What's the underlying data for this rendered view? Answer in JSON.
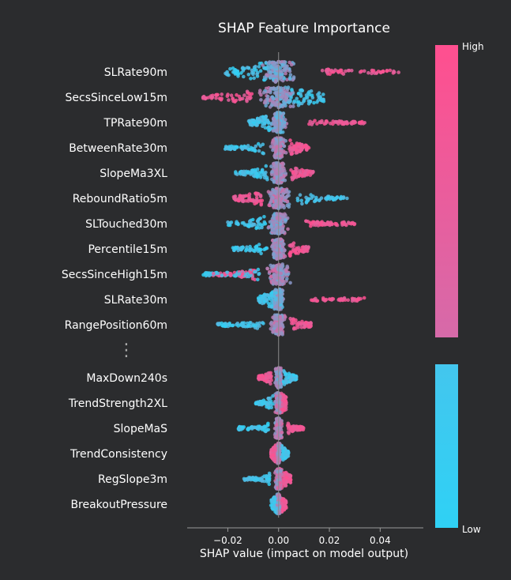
{
  "chart_data": {
    "type": "scatter",
    "subtype": "shap-beeswarm",
    "title": "SHAP Feature Importance",
    "xlabel": "SHAP value (impact on model output)",
    "xlim": [
      -0.036,
      0.057
    ],
    "xticks": [
      -0.02,
      0.0,
      0.02,
      0.04
    ],
    "xtick_labels": [
      "−0.02",
      "0.00",
      "0.02",
      "0.04"
    ],
    "colorbar": {
      "high_label": "High",
      "low_label": "Low",
      "high_color": "#ff4f8f",
      "low_color": "#2fd1f5"
    },
    "colors": {
      "background": "#2b2c2e",
      "text": "#ffffff",
      "axis": "#9a9a9a",
      "zero_line": "#8c8c8c"
    },
    "ellipsis_symbol": "⋮",
    "features_top": [
      {
        "name": "SLRate90m",
        "min": -0.021,
        "max": 0.054,
        "low_side": "neg",
        "core": 0.009,
        "high_tail": 0.048
      },
      {
        "name": "SecsSinceLow15m",
        "min": -0.033,
        "max": 0.018,
        "low_side": "pos",
        "core": 0.01,
        "high_tail": -0.03
      },
      {
        "name": "TPRate90m",
        "min": -0.012,
        "max": 0.036,
        "low_side": "neg",
        "core": 0.004,
        "high_tail": 0.034
      },
      {
        "name": "BetweenRate30m",
        "min": -0.022,
        "max": 0.016,
        "low_side": "neg",
        "core": 0.004,
        "high_tail": 0.012
      },
      {
        "name": "SlopeMa3XL",
        "min": -0.017,
        "max": 0.018,
        "low_side": "neg",
        "core": 0.004,
        "high_tail": 0.014
      },
      {
        "name": "ReboundRatio5m",
        "min": -0.022,
        "max": 0.027,
        "low_side": "pos",
        "core": 0.006,
        "high_tail": -0.018
      },
      {
        "name": "SLTouched30m",
        "min": -0.02,
        "max": 0.032,
        "low_side": "neg",
        "core": 0.005,
        "high_tail": 0.03
      },
      {
        "name": "Percentile15m",
        "min": -0.018,
        "max": 0.015,
        "low_side": "neg",
        "core": 0.004,
        "high_tail": 0.012
      },
      {
        "name": "SecsSinceHigh15m",
        "min": -0.03,
        "max": 0.036,
        "low_side": "neg",
        "core": 0.006,
        "high_tail": -0.026
      },
      {
        "name": "SLRate30m",
        "min": -0.008,
        "max": 0.036,
        "low_side": "neg",
        "core": 0.003,
        "high_tail": 0.034
      },
      {
        "name": "RangePosition60m",
        "min": -0.024,
        "max": 0.015,
        "low_side": "neg",
        "core": 0.004,
        "high_tail": 0.013
      }
    ],
    "features_bottom": [
      {
        "name": "MaxDown240s",
        "min": -0.009,
        "max": 0.007,
        "low_side": "pos",
        "core": 0.002,
        "high_tail": -0.008
      },
      {
        "name": "TrendStrength2XL",
        "min": -0.009,
        "max": 0.004,
        "low_side": "neg",
        "core": 0.002,
        "high_tail": 0.003
      },
      {
        "name": "SlopeMaS",
        "min": -0.016,
        "max": 0.011,
        "low_side": "neg",
        "core": 0.002,
        "high_tail": 0.01
      },
      {
        "name": "TrendConsistency",
        "min": -0.003,
        "max": 0.004,
        "low_side": "pos",
        "core": 0.001,
        "high_tail": -0.003
      },
      {
        "name": "RegSlope3m",
        "min": -0.014,
        "max": 0.006,
        "low_side": "neg",
        "core": 0.002,
        "high_tail": 0.005
      },
      {
        "name": "BreakoutPressure",
        "min": -0.003,
        "max": 0.004,
        "low_side": "neg",
        "core": 0.001,
        "high_tail": 0.003
      }
    ]
  }
}
